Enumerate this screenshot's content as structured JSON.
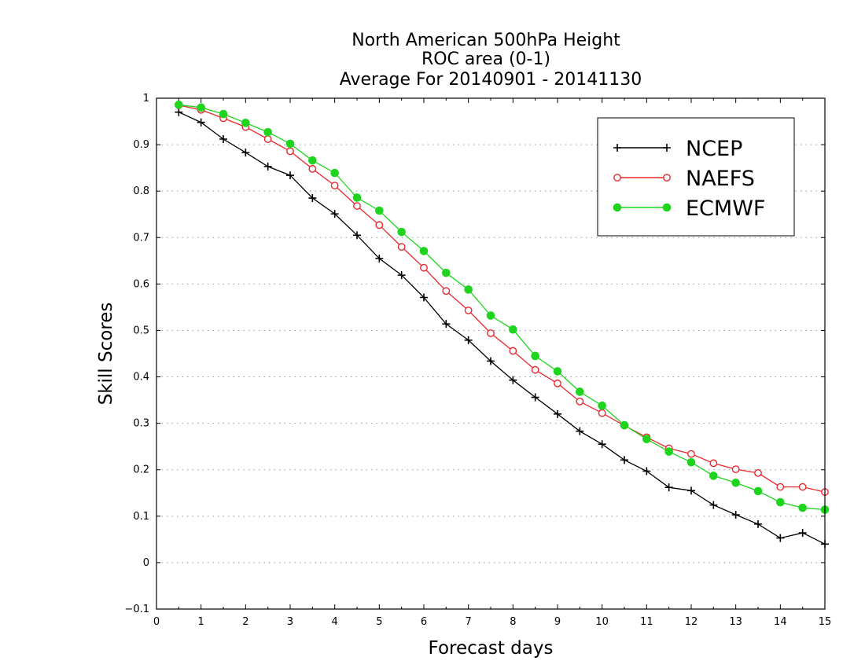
{
  "chart_data": {
    "type": "line",
    "title_lines": [
      "North American 500hPa Height",
      "ROC area (0-1)",
      "Average For 20140901 - 20141130"
    ],
    "xlabel": "Forecast days",
    "ylabel": "Skill Scores",
    "xlim": [
      0,
      15
    ],
    "ylim": [
      -0.1,
      1
    ],
    "x_ticks": [
      "0",
      "1",
      "2",
      "3",
      "4",
      "5",
      "6",
      "7",
      "8",
      "9",
      "10",
      "11",
      "12",
      "13",
      "14",
      "15"
    ],
    "y_ticks": [
      "−0.1",
      "0",
      "0.1",
      "0.2",
      "0.3",
      "0.4",
      "0.5",
      "0.6",
      "0.7",
      "0.8",
      "0.9",
      "1"
    ],
    "grid": "horizontal dotted",
    "legend_position": "top-right",
    "x": [
      0.5,
      1,
      1.5,
      2,
      2.5,
      3,
      3.5,
      4,
      4.5,
      5,
      5.5,
      6,
      6.5,
      7,
      7.5,
      8,
      8.5,
      9,
      9.5,
      10,
      10.5,
      11,
      11.5,
      12,
      12.5,
      13,
      13.5,
      14,
      14.5,
      15
    ],
    "series": [
      {
        "name": "NCEP",
        "color": "#000000",
        "marker": "plus",
        "values": [
          0.97,
          0.948,
          0.912,
          0.883,
          0.853,
          0.834,
          0.785,
          0.751,
          0.705,
          0.655,
          0.619,
          0.571,
          0.514,
          0.479,
          0.434,
          0.393,
          0.356,
          0.32,
          0.283,
          0.255,
          0.221,
          0.197,
          0.162,
          0.155,
          0.124,
          0.103,
          0.083,
          0.053,
          0.064,
          0.04
        ]
      },
      {
        "name": "NAEFS",
        "color": "#e8282d",
        "marker": "open-circle",
        "values": [
          0.985,
          0.975,
          0.957,
          0.938,
          0.912,
          0.886,
          0.848,
          0.812,
          0.768,
          0.727,
          0.68,
          0.635,
          0.585,
          0.543,
          0.494,
          0.456,
          0.415,
          0.386,
          0.347,
          0.322,
          0.295,
          0.27,
          0.246,
          0.234,
          0.214,
          0.201,
          0.193,
          0.163,
          0.163,
          0.152
        ]
      },
      {
        "name": "ECMWF",
        "color": "#1ed41e",
        "marker": "filled-circle",
        "values": [
          0.986,
          0.98,
          0.966,
          0.947,
          0.927,
          0.902,
          0.866,
          0.839,
          0.786,
          0.758,
          0.712,
          0.671,
          0.624,
          0.588,
          0.532,
          0.502,
          0.445,
          0.412,
          0.368,
          0.338,
          0.296,
          0.266,
          0.239,
          0.216,
          0.187,
          0.172,
          0.154,
          0.13,
          0.118,
          0.114
        ]
      }
    ]
  }
}
